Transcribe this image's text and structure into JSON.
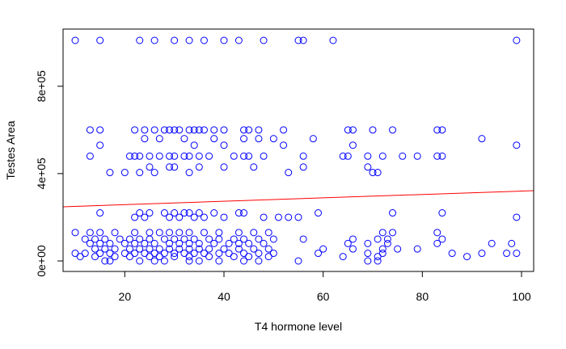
{
  "chart_data": {
    "type": "scatter",
    "title": "",
    "xlabel": "T4 hormone level",
    "ylabel": "Testes Area",
    "xlim": [
      10,
      100
    ],
    "ylim": [
      0,
      1010000
    ],
    "x_ticks": [
      20,
      40,
      60,
      80,
      100
    ],
    "x_tick_labels": [
      "20",
      "40",
      "60",
      "80",
      "100"
    ],
    "y_ticks": [
      0,
      400000,
      800000
    ],
    "y_tick_labels": [
      "0e+00",
      "4e+05",
      "8e+05"
    ],
    "grid": false,
    "legend": "none",
    "point_color": "#0000ff",
    "line_color": "#ff0000",
    "regression_line": {
      "x": [
        10,
        100
      ],
      "y": [
        250000,
        320000
      ]
    },
    "series": [
      {
        "points": [
          [
            10,
            1010000
          ],
          [
            15,
            1010000
          ],
          [
            23,
            1010000
          ],
          [
            26,
            1010000
          ],
          [
            30,
            1010000
          ],
          [
            33,
            1010000
          ],
          [
            36,
            1010000
          ],
          [
            40,
            1010000
          ],
          [
            43,
            1010000
          ],
          [
            48,
            1010000
          ],
          [
            55,
            1010000
          ],
          [
            56,
            1010000
          ],
          [
            62,
            1010000
          ],
          [
            99,
            1010000
          ],
          [
            13,
            600000
          ],
          [
            15,
            600000
          ],
          [
            22,
            600000
          ],
          [
            24,
            600000
          ],
          [
            26,
            600000
          ],
          [
            28,
            600000
          ],
          [
            29,
            600000
          ],
          [
            30,
            600000
          ],
          [
            31,
            600000
          ],
          [
            33,
            600000
          ],
          [
            34,
            600000
          ],
          [
            35,
            600000
          ],
          [
            36,
            600000
          ],
          [
            38,
            600000
          ],
          [
            40,
            600000
          ],
          [
            44,
            600000
          ],
          [
            45,
            600000
          ],
          [
            47,
            600000
          ],
          [
            52,
            600000
          ],
          [
            65,
            600000
          ],
          [
            66,
            600000
          ],
          [
            70,
            600000
          ],
          [
            74,
            600000
          ],
          [
            83,
            600000
          ],
          [
            84,
            600000
          ],
          [
            24,
            560000
          ],
          [
            27,
            560000
          ],
          [
            32,
            560000
          ],
          [
            38,
            560000
          ],
          [
            44,
            560000
          ],
          [
            47,
            560000
          ],
          [
            50,
            560000
          ],
          [
            58,
            560000
          ],
          [
            92,
            560000
          ],
          [
            15,
            530000
          ],
          [
            34,
            530000
          ],
          [
            40,
            530000
          ],
          [
            52,
            530000
          ],
          [
            66,
            530000
          ],
          [
            99,
            530000
          ],
          [
            13,
            480000
          ],
          [
            21,
            480000
          ],
          [
            22,
            480000
          ],
          [
            23,
            480000
          ],
          [
            25,
            480000
          ],
          [
            27,
            480000
          ],
          [
            29,
            480000
          ],
          [
            30,
            480000
          ],
          [
            32,
            480000
          ],
          [
            33,
            480000
          ],
          [
            35,
            480000
          ],
          [
            37,
            480000
          ],
          [
            42,
            480000
          ],
          [
            44,
            480000
          ],
          [
            45,
            480000
          ],
          [
            48,
            480000
          ],
          [
            56,
            480000
          ],
          [
            64,
            480000
          ],
          [
            65,
            480000
          ],
          [
            69,
            480000
          ],
          [
            72,
            480000
          ],
          [
            76,
            480000
          ],
          [
            79,
            480000
          ],
          [
            83,
            480000
          ],
          [
            84,
            480000
          ],
          [
            25,
            430000
          ],
          [
            29,
            430000
          ],
          [
            30,
            430000
          ],
          [
            35,
            430000
          ],
          [
            40,
            430000
          ],
          [
            46,
            430000
          ],
          [
            56,
            430000
          ],
          [
            69,
            430000
          ],
          [
            17,
            405000
          ],
          [
            20,
            405000
          ],
          [
            23,
            405000
          ],
          [
            26,
            405000
          ],
          [
            33,
            405000
          ],
          [
            53,
            405000
          ],
          [
            70,
            405000
          ],
          [
            71,
            405000
          ],
          [
            15,
            220000
          ],
          [
            23,
            220000
          ],
          [
            25,
            220000
          ],
          [
            28,
            220000
          ],
          [
            30,
            220000
          ],
          [
            32,
            220000
          ],
          [
            33,
            220000
          ],
          [
            35,
            220000
          ],
          [
            38,
            220000
          ],
          [
            43,
            220000
          ],
          [
            44,
            220000
          ],
          [
            59,
            220000
          ],
          [
            74,
            220000
          ],
          [
            84,
            220000
          ],
          [
            22,
            200000
          ],
          [
            24,
            200000
          ],
          [
            29,
            200000
          ],
          [
            31,
            200000
          ],
          [
            34,
            200000
          ],
          [
            36,
            200000
          ],
          [
            40,
            200000
          ],
          [
            48,
            200000
          ],
          [
            51,
            200000
          ],
          [
            53,
            200000
          ],
          [
            55,
            200000
          ],
          [
            99,
            200000
          ],
          [
            10,
            130000
          ],
          [
            13,
            130000
          ],
          [
            15,
            130000
          ],
          [
            18,
            130000
          ],
          [
            22,
            130000
          ],
          [
            25,
            130000
          ],
          [
            27,
            130000
          ],
          [
            29,
            130000
          ],
          [
            31,
            130000
          ],
          [
            33,
            130000
          ],
          [
            36,
            130000
          ],
          [
            39,
            130000
          ],
          [
            43,
            130000
          ],
          [
            46,
            130000
          ],
          [
            49,
            130000
          ],
          [
            72,
            130000
          ],
          [
            74,
            130000
          ],
          [
            83,
            130000
          ],
          [
            12,
            100000
          ],
          [
            14,
            100000
          ],
          [
            16,
            100000
          ],
          [
            19,
            100000
          ],
          [
            21,
            100000
          ],
          [
            23,
            100000
          ],
          [
            25,
            100000
          ],
          [
            28,
            100000
          ],
          [
            30,
            100000
          ],
          [
            32,
            100000
          ],
          [
            34,
            100000
          ],
          [
            37,
            100000
          ],
          [
            39,
            100000
          ],
          [
            42,
            100000
          ],
          [
            44,
            100000
          ],
          [
            47,
            100000
          ],
          [
            50,
            100000
          ],
          [
            56,
            100000
          ],
          [
            66,
            100000
          ],
          [
            71,
            100000
          ],
          [
            73,
            100000
          ],
          [
            84,
            100000
          ],
          [
            13,
            80000
          ],
          [
            15,
            80000
          ],
          [
            17,
            80000
          ],
          [
            20,
            80000
          ],
          [
            22,
            80000
          ],
          [
            24,
            80000
          ],
          [
            26,
            80000
          ],
          [
            29,
            80000
          ],
          [
            31,
            80000
          ],
          [
            33,
            80000
          ],
          [
            35,
            80000
          ],
          [
            38,
            80000
          ],
          [
            41,
            80000
          ],
          [
            43,
            80000
          ],
          [
            45,
            80000
          ],
          [
            48,
            80000
          ],
          [
            65,
            80000
          ],
          [
            69,
            80000
          ],
          [
            73,
            80000
          ],
          [
            83,
            80000
          ],
          [
            94,
            80000
          ],
          [
            98,
            80000
          ],
          [
            14,
            55000
          ],
          [
            16,
            55000
          ],
          [
            18,
            55000
          ],
          [
            21,
            55000
          ],
          [
            23,
            55000
          ],
          [
            25,
            55000
          ],
          [
            27,
            55000
          ],
          [
            29,
            55000
          ],
          [
            31,
            55000
          ],
          [
            33,
            55000
          ],
          [
            35,
            55000
          ],
          [
            37,
            55000
          ],
          [
            40,
            55000
          ],
          [
            43,
            55000
          ],
          [
            46,
            55000
          ],
          [
            49,
            55000
          ],
          [
            60,
            55000
          ],
          [
            66,
            55000
          ],
          [
            72,
            55000
          ],
          [
            75,
            55000
          ],
          [
            79,
            55000
          ],
          [
            10,
            35000
          ],
          [
            12,
            35000
          ],
          [
            15,
            35000
          ],
          [
            17,
            35000
          ],
          [
            20,
            35000
          ],
          [
            22,
            35000
          ],
          [
            24,
            35000
          ],
          [
            26,
            35000
          ],
          [
            28,
            35000
          ],
          [
            30,
            35000
          ],
          [
            32,
            35000
          ],
          [
            34,
            35000
          ],
          [
            36,
            35000
          ],
          [
            39,
            35000
          ],
          [
            41,
            35000
          ],
          [
            44,
            35000
          ],
          [
            47,
            35000
          ],
          [
            50,
            35000
          ],
          [
            59,
            35000
          ],
          [
            69,
            35000
          ],
          [
            72,
            35000
          ],
          [
            86,
            35000
          ],
          [
            92,
            35000
          ],
          [
            97,
            35000
          ],
          [
            99,
            35000
          ],
          [
            11,
            20000
          ],
          [
            14,
            20000
          ],
          [
            18,
            20000
          ],
          [
            21,
            20000
          ],
          [
            25,
            20000
          ],
          [
            27,
            20000
          ],
          [
            30,
            20000
          ],
          [
            33,
            20000
          ],
          [
            37,
            20000
          ],
          [
            42,
            20000
          ],
          [
            45,
            20000
          ],
          [
            49,
            20000
          ],
          [
            64,
            20000
          ],
          [
            71,
            20000
          ],
          [
            89,
            20000
          ],
          [
            16,
            0
          ],
          [
            17,
            0
          ],
          [
            23,
            0
          ],
          [
            26,
            0
          ],
          [
            28,
            0
          ],
          [
            33,
            0
          ],
          [
            35,
            0
          ],
          [
            39,
            0
          ],
          [
            44,
            0
          ],
          [
            47,
            0
          ],
          [
            55,
            0
          ],
          [
            69,
            0
          ],
          [
            71,
            0
          ]
        ]
      }
    ]
  }
}
